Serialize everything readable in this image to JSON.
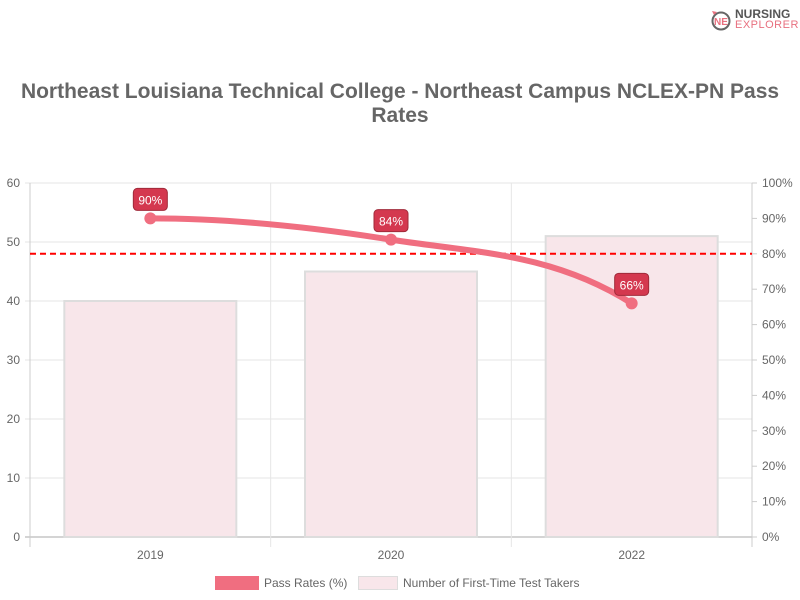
{
  "chart_data": {
    "type": "bar+line",
    "title": "Northeast Louisiana Technical College - Northeast Campus NCLEX-PN Pass Rates",
    "categories": [
      "2019",
      "2020",
      "2022"
    ],
    "series": [
      {
        "name": "Pass Rates (%)",
        "type": "line",
        "axis": "right",
        "values": [
          90,
          84,
          66
        ],
        "labels": [
          "90%",
          "84%",
          "66%"
        ],
        "color": "#f06e80"
      },
      {
        "name": "Number of First-Time Test Takers",
        "type": "bar",
        "axis": "left",
        "values": [
          40,
          45,
          51
        ],
        "color": "#f8e6ea"
      }
    ],
    "reference_line": {
      "axis": "right",
      "value": 80,
      "style": "dashed",
      "color": "#ff0000"
    },
    "y_left": {
      "lim": [
        0,
        60
      ],
      "ticks": [
        "0",
        "10",
        "20",
        "30",
        "40",
        "50",
        "60"
      ]
    },
    "y_right": {
      "lim": [
        0,
        100
      ],
      "ticks": [
        "0%",
        "10%",
        "20%",
        "30%",
        "40%",
        "50%",
        "60%",
        "70%",
        "80%",
        "90%",
        "100%"
      ]
    },
    "grid": true,
    "legend": "bottom"
  },
  "logo": {
    "line1": "NURSING",
    "line2": "EXPLORER"
  }
}
